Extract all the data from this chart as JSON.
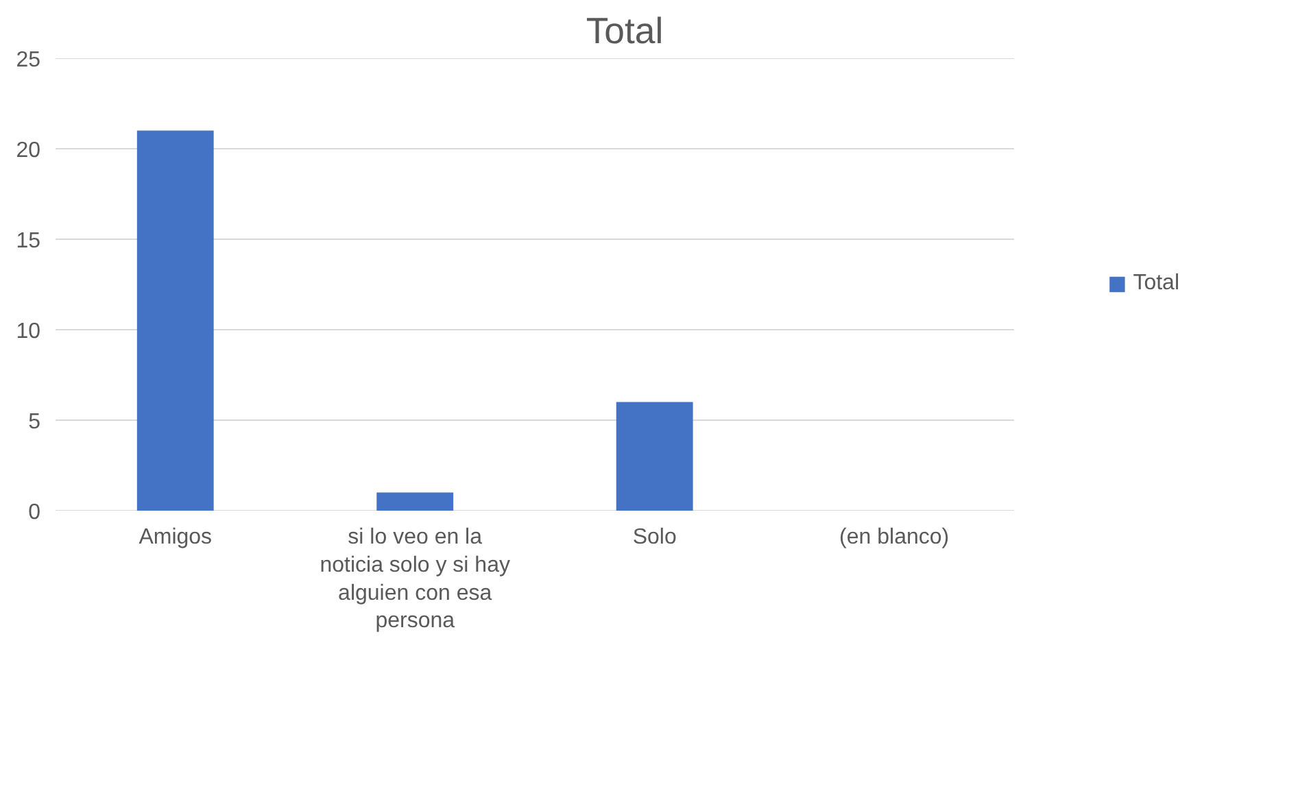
{
  "chart_data": {
    "type": "bar",
    "title": "Total",
    "categories": [
      "Amigos",
      "si lo veo en la noticia solo y si hay alguien con esa persona",
      "Solo",
      "(en blanco)"
    ],
    "series": [
      {
        "name": "Total",
        "color": "#4472c4",
        "values": [
          21,
          1,
          6,
          null
        ]
      }
    ],
    "ylim": [
      0,
      25
    ],
    "yticks": [
      0,
      5,
      10,
      15,
      20,
      25
    ],
    "grid": "y",
    "legend": "right"
  }
}
